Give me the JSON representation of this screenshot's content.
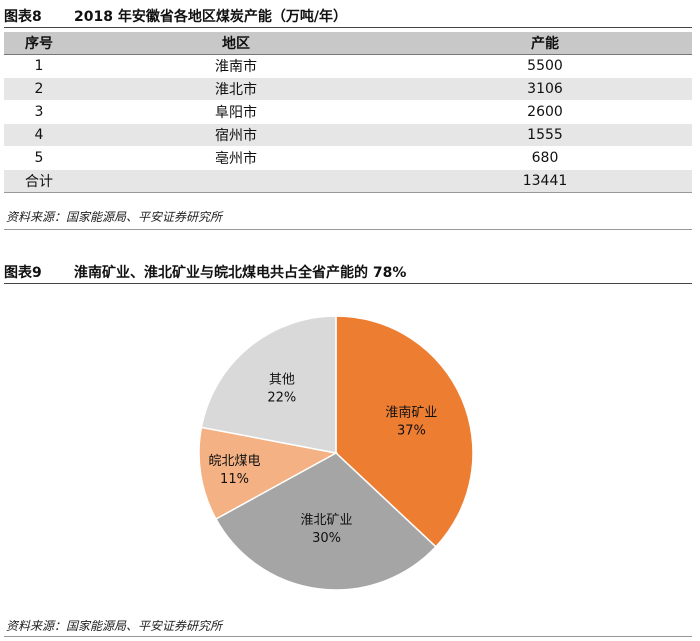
{
  "table_section": {
    "figure_no": "图表8",
    "title": "2018 年安徽省各地区煤炭产能（万吨/年）",
    "headers": [
      "序号",
      "地区",
      "产能"
    ],
    "rows": [
      {
        "no": "1",
        "region": "淮南市",
        "capacity": "5500"
      },
      {
        "no": "2",
        "region": "淮北市",
        "capacity": "3106"
      },
      {
        "no": "3",
        "region": "阜阳市",
        "capacity": "2600"
      },
      {
        "no": "4",
        "region": "宿州市",
        "capacity": "1555"
      },
      {
        "no": "5",
        "region": "亳州市",
        "capacity": "680"
      }
    ],
    "total_label": "合计",
    "total_value": "13441",
    "source": "资料来源：国家能源局、平安证券研究所"
  },
  "chart_section": {
    "figure_no": "图表9",
    "title": "淮南矿业、淮北矿业与皖北煤电共占全省产能的 78%",
    "source": "资料来源：国家能源局、平安证券研究所"
  },
  "chart_data": {
    "type": "pie",
    "title": "",
    "slices": [
      {
        "name": "淮南矿业",
        "label": "37%",
        "value": 37,
        "color": "#ed7d31"
      },
      {
        "name": "淮北矿业",
        "label": "30%",
        "value": 30,
        "color": "#a5a5a5"
      },
      {
        "name": "皖北煤电",
        "label": "11%",
        "value": 11,
        "color": "#f4b183"
      },
      {
        "name": "其他",
        "label": "22%",
        "value": 22,
        "color": "#d9d9d9"
      }
    ]
  }
}
